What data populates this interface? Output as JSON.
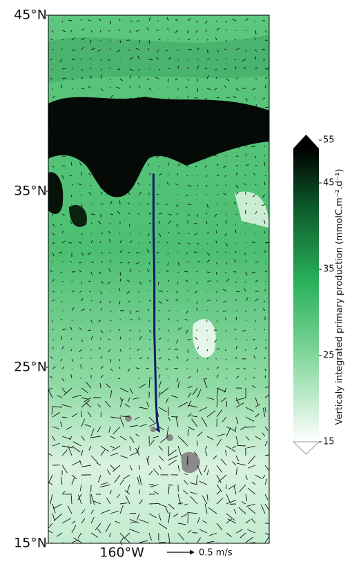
{
  "map": {
    "xlim": [
      -164.2,
      -151.6
    ],
    "ylim": [
      15,
      45
    ],
    "lat_ticks": [
      {
        "value": 45,
        "label": "45°N"
      },
      {
        "value": 35,
        "label": "35°N"
      },
      {
        "value": 25,
        "label": "25°N"
      },
      {
        "value": 15,
        "label": "15°N"
      }
    ],
    "lon_ticks": [
      {
        "value": -160,
        "label": "160°W"
      }
    ],
    "track": {
      "color": "#0b1a6b",
      "lat": [
        36,
        33,
        30,
        27,
        25,
        23,
        22,
        21.4,
        21.5
      ],
      "lon": [
        -158.2,
        -158.2,
        -158.15,
        -158.15,
        -158.1,
        -158.05,
        -158.0,
        -157.9,
        -158.05
      ]
    },
    "quiver_key": {
      "label": "0.5 m/s"
    }
  },
  "colorbar": {
    "label": "Verticaly integrated primary production (mmolC.m⁻².d⁻¹)",
    "ticks": [
      15,
      25,
      35,
      45,
      55
    ]
  }
}
